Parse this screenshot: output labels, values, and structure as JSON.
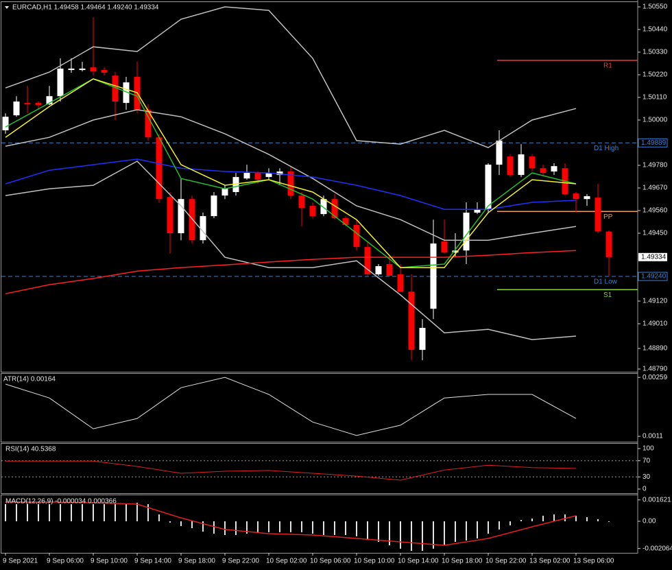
{
  "chart_data": [
    {
      "type": "candlestick",
      "title": "EURCAD,H1 1.49458 1.49464 1.49240 1.49334",
      "categories": [
        "9 Sep 2021",
        null,
        null,
        null,
        "9 Sep 06:00",
        null,
        null,
        null,
        "9 Sep 10:00",
        null,
        null,
        null,
        "9 Sep 14:00",
        null,
        null,
        null,
        "9 Sep 18:00",
        null,
        null,
        null,
        "9 Sep 22:00",
        null,
        null,
        null,
        "10 Sep 02:00",
        null,
        null,
        null,
        "10 Sep 06:00",
        null,
        null,
        null,
        "10 Sep 10:00",
        null,
        null,
        null,
        "10 Sep 14:00",
        null,
        null,
        null,
        "10 Sep 18:00",
        null,
        null,
        null,
        "10 Sep 22:00",
        null,
        null,
        null,
        "13 Sep 02:00",
        null,
        null,
        null,
        "13 Sep 06:00",
        null,
        null,
        null
      ],
      "open": [
        1.4995,
        1.50023,
        1.50083,
        1.50083,
        1.50076,
        1.50116,
        1.50243,
        1.50243,
        1.50256,
        1.50243,
        1.50216,
        1.50083,
        1.5021,
        1.5005,
        1.49916,
        1.49626,
        1.4945,
        1.49616,
        1.49416,
        1.49533,
        1.49633,
        1.4965,
        1.49716,
        1.49743,
        1.49723,
        1.49733,
        1.4975,
        1.49633,
        1.49583,
        1.49543,
        1.49616,
        1.49523,
        1.4949,
        1.49383,
        1.4925,
        1.493,
        1.4925,
        1.49166,
        1.48883,
        1.49083,
        1.4941,
        1.49356,
        1.49366,
        1.4955,
        1.49566,
        1.49783,
        1.49823,
        1.49733,
        1.49823,
        1.49766,
        1.4975,
        1.49766,
        1.49643,
        1.49616,
        1.49623,
        1.49458
      ],
      "high": [
        1.50033,
        1.50116,
        1.50166,
        1.5009,
        1.50166,
        1.503,
        1.503,
        1.50283,
        1.505,
        1.50256,
        1.50233,
        1.5021,
        1.50283,
        1.50076,
        1.49933,
        1.4965,
        1.49716,
        1.49633,
        1.4955,
        1.4965,
        1.49683,
        1.49743,
        1.49783,
        1.4975,
        1.49766,
        1.49766,
        1.49776,
        1.4965,
        1.496,
        1.49633,
        1.4964,
        1.49533,
        1.49516,
        1.4941,
        1.493,
        1.49333,
        1.493,
        1.4925,
        1.49033,
        1.49516,
        1.49516,
        1.4945,
        1.496,
        1.496,
        1.4979,
        1.4995,
        1.49833,
        1.49883,
        1.49833,
        1.49783,
        1.4979,
        1.4979,
        1.4965,
        1.4964,
        1.4969,
        1.49464
      ],
      "low": [
        1.49933,
        1.50016,
        1.50033,
        1.5005,
        1.50073,
        1.5009,
        1.5023,
        1.50236,
        1.50216,
        1.50216,
        1.5,
        1.5005,
        1.50033,
        1.499,
        1.496,
        1.4935,
        1.49416,
        1.494,
        1.494,
        1.49523,
        1.49616,
        1.49633,
        1.4971,
        1.4969,
        1.4971,
        1.49683,
        1.49616,
        1.49483,
        1.49523,
        1.49533,
        1.49516,
        1.49483,
        1.49366,
        1.49243,
        1.49243,
        1.49243,
        1.49166,
        1.48833,
        1.48833,
        1.49033,
        1.4935,
        1.49333,
        1.493,
        1.49543,
        1.4955,
        1.49733,
        1.49723,
        1.49723,
        1.4975,
        1.49733,
        1.49733,
        1.49633,
        1.4955,
        1.49583,
        1.4945,
        1.4924
      ],
      "close": [
        1.50016,
        1.5009,
        1.50076,
        1.50073,
        1.50116,
        1.5025,
        1.5025,
        1.5025,
        1.50236,
        1.5023,
        1.5009,
        1.50183,
        1.5005,
        1.49916,
        1.49616,
        1.4945,
        1.49616,
        1.49416,
        1.49533,
        1.49633,
        1.49666,
        1.49723,
        1.49743,
        1.4971,
        1.49743,
        1.4975,
        1.49633,
        1.49573,
        1.49533,
        1.49616,
        1.49523,
        1.4949,
        1.49383,
        1.4925,
        1.4929,
        1.49243,
        1.49166,
        1.48883,
        1.4899,
        1.494,
        1.49356,
        1.49366,
        1.4955,
        1.49566,
        1.49783,
        1.499,
        1.49733,
        1.49833,
        1.49766,
        1.49743,
        1.49776,
        1.4964,
        1.49616,
        1.4963,
        1.4946,
        1.49334
      ],
      "up_color": "#ffffff",
      "down_color": "#ff0000",
      "ylim": [
        1.4878,
        1.5057
      ],
      "yticks": [
        {
          "value": 1.5055,
          "label": "1.50550"
        },
        {
          "value": 1.5044,
          "label": "1.50440"
        },
        {
          "value": 1.5033,
          "label": "1.50330"
        },
        {
          "value": 1.5022,
          "label": "1.50220"
        },
        {
          "value": 1.5011,
          "label": "1.50110"
        },
        {
          "value": 1.5,
          "label": "1.50000"
        },
        {
          "value": 1.4978,
          "label": "1.49780"
        },
        {
          "value": 1.4967,
          "label": "1.49670"
        },
        {
          "value": 1.4956,
          "label": "1.49560"
        },
        {
          "value": 1.4945,
          "label": "1.49450"
        },
        {
          "value": 1.4912,
          "label": "1.49120"
        },
        {
          "value": 1.4901,
          "label": "1.49010"
        },
        {
          "value": 1.4889,
          "label": "1.48890"
        },
        {
          "value": 1.4879,
          "label": "1.48790"
        }
      ],
      "levels": [
        {
          "label": "R1",
          "value": 1.5029,
          "color": "#e8403a"
        },
        {
          "label": "D1 High",
          "value": 1.49889,
          "value_label": "1.49889",
          "color": "#3a82d6",
          "dashed": true
        },
        {
          "label": "PP",
          "value": 1.49556,
          "color": "#f29a5c"
        },
        {
          "label": "D1 Low",
          "value": 1.4924,
          "value_label": "1.49240",
          "color": "#3a82d6",
          "dashed": true
        },
        {
          "label": "S1",
          "value": 1.49176,
          "color": "#86d42a"
        }
      ],
      "last_price": 1.49334,
      "overlays": [
        {
          "color": "#c0c0c0",
          "x": [
            "9 Sep 2021",
            "9 Sep 06:00",
            "9 Sep 10:00",
            "9 Sep 14:00",
            "9 Sep 18:00",
            "9 Sep 22:00",
            "10 Sep 02:00",
            "10 Sep 06:00",
            "10 Sep 10:00",
            "10 Sep 14:00",
            "10 Sep 18:00",
            "10 Sep 22:00",
            "13 Sep 02:00",
            "13 Sep 06:00"
          ],
          "values": [
            1.50156,
            1.50233,
            1.50356,
            1.50333,
            1.5049,
            1.5055,
            1.50533,
            1.503,
            1.499,
            1.49883,
            1.4995,
            1.49866,
            1.5,
            1.50056
          ]
        },
        {
          "color": "#c0c0c0",
          "x": [
            "9 Sep 2021",
            "9 Sep 06:00",
            "9 Sep 10:00",
            "9 Sep 14:00",
            "9 Sep 18:00",
            "9 Sep 22:00",
            "10 Sep 02:00",
            "10 Sep 06:00",
            "10 Sep 10:00",
            "10 Sep 14:00",
            "10 Sep 18:00",
            "10 Sep 22:00",
            "13 Sep 02:00",
            "13 Sep 06:00"
          ],
          "values": [
            1.49873,
            1.49916,
            1.5,
            1.5005,
            1.50016,
            1.49933,
            1.49833,
            1.49716,
            1.49583,
            1.49516,
            1.49416,
            1.49416,
            1.4945,
            1.49483
          ]
        },
        {
          "color": "#c0c0c0",
          "x": [
            "9 Sep 2021",
            "9 Sep 06:00",
            "9 Sep 10:00",
            "9 Sep 14:00",
            "9 Sep 18:00",
            "9 Sep 22:00",
            "10 Sep 02:00",
            "10 Sep 06:00",
            "10 Sep 10:00",
            "10 Sep 14:00",
            "10 Sep 18:00",
            "10 Sep 22:00",
            "13 Sep 02:00",
            "13 Sep 06:00"
          ],
          "values": [
            1.49633,
            1.49666,
            1.49683,
            1.498,
            1.49583,
            1.49333,
            1.49283,
            1.49283,
            1.49316,
            1.4915,
            1.48966,
            1.48983,
            1.48933,
            1.4895
          ]
        },
        {
          "color": "#2030ff",
          "x": [
            "9 Sep 2021",
            "9 Sep 06:00",
            "9 Sep 10:00",
            "9 Sep 14:00",
            "9 Sep 18:00",
            "9 Sep 22:00",
            "10 Sep 02:00",
            "10 Sep 06:00",
            "10 Sep 10:00",
            "10 Sep 14:00",
            "10 Sep 18:00",
            "10 Sep 22:00",
            "13 Sep 02:00",
            "13 Sep 06:00"
          ],
          "values": [
            1.4969,
            1.49756,
            1.49783,
            1.4981,
            1.49766,
            1.4975,
            1.49743,
            1.49723,
            1.49683,
            1.49633,
            1.49566,
            1.49566,
            1.496,
            1.4961
          ]
        },
        {
          "color": "#ff2020",
          "x": [
            "9 Sep 2021",
            "9 Sep 06:00",
            "9 Sep 10:00",
            "9 Sep 14:00",
            "9 Sep 18:00",
            "9 Sep 22:00",
            "10 Sep 02:00",
            "10 Sep 06:00",
            "10 Sep 10:00",
            "10 Sep 14:00",
            "10 Sep 18:00",
            "10 Sep 22:00",
            "13 Sep 02:00",
            "13 Sep 06:00"
          ],
          "values": [
            1.49156,
            1.492,
            1.4923,
            1.49266,
            1.49283,
            1.49296,
            1.4931,
            1.49323,
            1.49333,
            1.49333,
            1.49333,
            1.49343,
            1.49356,
            1.49366
          ]
        },
        {
          "color": "#22c02a",
          "x": [
            "9 Sep 2021",
            "9 Sep 06:00",
            "9 Sep 10:00",
            "9 Sep 14:00",
            "9 Sep 18:00",
            "9 Sep 22:00",
            "10 Sep 02:00",
            "10 Sep 06:00",
            "10 Sep 10:00",
            "10 Sep 14:00",
            "10 Sep 18:00",
            "10 Sep 22:00",
            "13 Sep 02:00",
            "13 Sep 06:00"
          ],
          "values": [
            1.49966,
            1.50083,
            1.502,
            1.50116,
            1.49716,
            1.49666,
            1.4971,
            1.49616,
            1.4945,
            1.49283,
            1.493,
            1.49583,
            1.49743,
            1.4969
          ]
        },
        {
          "color": "#f2f030",
          "x": [
            "9 Sep 2021",
            "9 Sep 06:00",
            "9 Sep 10:00",
            "9 Sep 14:00",
            "9 Sep 18:00",
            "9 Sep 22:00",
            "10 Sep 02:00",
            "10 Sep 06:00",
            "10 Sep 10:00",
            "10 Sep 14:00",
            "10 Sep 18:00",
            "10 Sep 22:00",
            "13 Sep 02:00",
            "13 Sep 06:00"
          ],
          "values": [
            1.49916,
            1.50066,
            1.502,
            1.50133,
            1.49783,
            1.49683,
            1.4971,
            1.4965,
            1.49516,
            1.49283,
            1.49283,
            1.4955,
            1.4971,
            1.4969
          ]
        }
      ]
    },
    {
      "type": "line",
      "title": "ATR(14) 0.00164",
      "x": [
        "9 Sep 2021",
        "9 Sep 06:00",
        "9 Sep 10:00",
        "9 Sep 14:00",
        "9 Sep 18:00",
        "9 Sep 22:00",
        "10 Sep 02:00",
        "10 Sep 06:00",
        "10 Sep 10:00",
        "10 Sep 14:00",
        "10 Sep 18:00",
        "10 Sep 22:00",
        "13 Sep 02:00",
        "13 Sep 06:00"
      ],
      "values": [
        0.00242,
        0.00207,
        0.00129,
        0.00155,
        0.00233,
        0.00259,
        0.00216,
        0.00146,
        0.00112,
        0.00138,
        0.00207,
        0.00216,
        0.00216,
        0.00155
      ],
      "color": "#e0e0e0",
      "ylim": [
        0.00098,
        0.00268
      ],
      "yticks": [
        0.00259,
        0.0011
      ]
    },
    {
      "type": "line",
      "title": "RSI(14) 40.5368",
      "x": [
        "9 Sep 2021",
        "9 Sep 06:00",
        "9 Sep 10:00",
        "9 Sep 14:00",
        "9 Sep 18:00",
        "9 Sep 22:00",
        "10 Sep 02:00",
        "10 Sep 06:00",
        "10 Sep 10:00",
        "10 Sep 14:00",
        "10 Sep 18:00",
        "10 Sep 22:00",
        "13 Sep 02:00",
        "13 Sep 06:00"
      ],
      "values": [
        69,
        69,
        69,
        56,
        39,
        44,
        46,
        39,
        32,
        22,
        47,
        59,
        53,
        51
      ],
      "color": "#e02020",
      "ylim": [
        0,
        100
      ],
      "yticks": [
        100,
        70,
        30,
        0
      ],
      "levels": [
        70,
        30
      ]
    },
    {
      "type": "bar",
      "title": "MACD(12,26,9) -0.000034 0.000366",
      "values": [
        0.0013,
        0.0013,
        0.0013,
        0.0013,
        0.0013,
        0.0013,
        0.0013,
        0.0013,
        0.0013,
        0.0013,
        0.0013,
        0.0013,
        0.0014,
        0.0013,
        0.00052,
        -0.0001,
        -0.00036,
        -0.00052,
        -0.00078,
        -0.00094,
        -0.00104,
        -0.00104,
        -0.00094,
        -0.00088,
        -0.00083,
        -0.00083,
        -0.00083,
        -0.00083,
        -0.00094,
        -0.00104,
        -0.00104,
        -0.00104,
        -0.00114,
        -0.00135,
        -0.00156,
        -0.00182,
        -0.00208,
        -0.00224,
        -0.00224,
        -0.00208,
        -0.00182,
        -0.00156,
        -0.00146,
        -0.0013,
        -0.00094,
        -0.00062,
        -0.00031,
        0.0001,
        0.00021,
        0.00042,
        0.00052,
        0.00052,
        0.00042,
        0.00031,
        0.00016,
        -3.4e-05
      ],
      "color": "#e0e0e0",
      "ylim": [
        -0.00229,
        0.00187
      ],
      "yticks": [
        0.001621,
        {
          "value": 0,
          "label": "0.00"
        },
        -0.002064
      ],
      "overlays": [
        {
          "color": "#e02020",
          "x": [
            "9 Sep 2021",
            "9 Sep 06:00",
            "9 Sep 10:00",
            "9 Sep 14:00",
            "9 Sep 18:00",
            "9 Sep 22:00",
            "10 Sep 02:00",
            "10 Sep 06:00",
            "10 Sep 10:00",
            "10 Sep 14:00",
            "10 Sep 18:00",
            "10 Sep 22:00",
            "13 Sep 02:00",
            "13 Sep 06:00"
          ],
          "values": [
            0.00146,
            0.00146,
            0.0014,
            0.0013,
            0.00026,
            -0.00062,
            -0.00094,
            -0.00104,
            -0.0013,
            -0.00156,
            -0.00182,
            -0.0013,
            -0.00042,
            0.00042
          ]
        }
      ]
    }
  ]
}
